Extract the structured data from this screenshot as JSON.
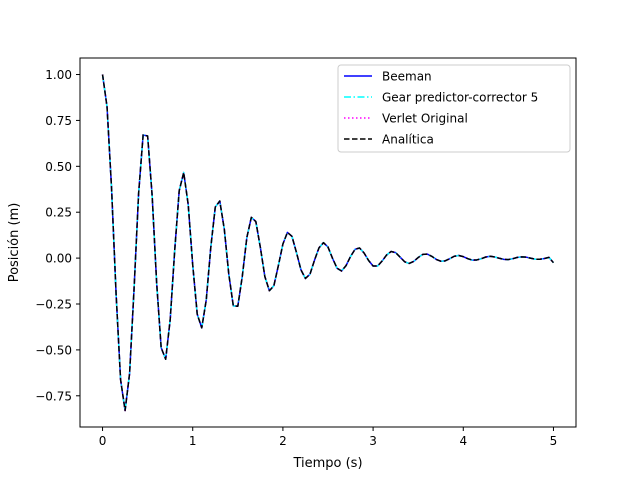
{
  "chart_data": {
    "type": "line",
    "title": "",
    "xlabel": "Tiempo (s)",
    "ylabel": "Posición (m)",
    "xlim": [
      -0.25,
      5.25
    ],
    "ylim": [
      -0.92,
      1.09
    ],
    "xticks": [
      0,
      1,
      2,
      3,
      4,
      5
    ],
    "xtick_labels": [
      "0",
      "1",
      "2",
      "3",
      "4",
      "5"
    ],
    "yticks": [
      -0.75,
      -0.5,
      -0.25,
      0.0,
      0.25,
      0.5,
      0.75,
      1.0
    ],
    "ytick_labels": [
      "−0.75",
      "−0.50",
      "−0.25",
      "0.00",
      "0.25",
      "0.50",
      "0.75",
      "1.00"
    ],
    "grid": false,
    "legend_position": "upper right",
    "x": [
      0,
      0.05,
      0.1,
      0.15,
      0.2,
      0.25,
      0.3,
      0.35,
      0.4,
      0.45,
      0.5,
      0.55,
      0.6,
      0.65,
      0.7,
      0.75,
      0.8,
      0.85,
      0.9,
      0.95,
      1,
      1.05,
      1.1,
      1.15,
      1.2,
      1.25,
      1.3,
      1.35,
      1.4,
      1.45,
      1.5,
      1.55,
      1.6,
      1.65,
      1.7,
      1.75,
      1.8,
      1.85,
      1.9,
      1.95,
      2,
      2.05,
      2.1,
      2.15,
      2.2,
      2.25,
      2.3,
      2.35,
      2.4,
      2.45,
      2.5,
      2.55,
      2.6,
      2.65,
      2.7,
      2.75,
      2.8,
      2.85,
      2.9,
      2.95,
      3,
      3.05,
      3.1,
      3.15,
      3.2,
      3.25,
      3.3,
      3.35,
      3.4,
      3.45,
      3.5,
      3.55,
      3.6,
      3.65,
      3.7,
      3.75,
      3.8,
      3.85,
      3.9,
      3.95,
      4,
      4.05,
      4.1,
      4.15,
      4.2,
      4.25,
      4.3,
      4.35,
      4.4,
      4.45,
      4.5,
      4.55,
      4.6,
      4.65,
      4.7,
      4.75,
      4.8,
      4.85,
      4.9,
      4.95,
      5
    ],
    "series": [
      {
        "name": "Beeman",
        "color": "#0000ff",
        "line_style": "solid",
        "values": [
          1.0,
          0.823,
          0.38,
          -0.193,
          -0.662,
          -0.83,
          -0.628,
          -0.162,
          0.353,
          0.671,
          0.665,
          0.34,
          -0.135,
          -0.488,
          -0.551,
          -0.336,
          0.041,
          0.367,
          0.466,
          0.291,
          -0.038,
          -0.306,
          -0.38,
          -0.228,
          0.057,
          0.278,
          0.311,
          0.158,
          -0.088,
          -0.26,
          -0.262,
          -0.098,
          0.112,
          0.222,
          0.199,
          0.058,
          -0.101,
          -0.178,
          -0.15,
          -0.04,
          0.077,
          0.14,
          0.119,
          0.031,
          -0.064,
          -0.111,
          -0.088,
          -0.012,
          0.056,
          0.084,
          0.06,
          -0.001,
          -0.055,
          -0.07,
          -0.041,
          0.009,
          0.048,
          0.055,
          0.028,
          -0.013,
          -0.043,
          -0.043,
          -0.016,
          0.017,
          0.036,
          0.03,
          0.005,
          -0.02,
          -0.029,
          -0.018,
          0.003,
          0.02,
          0.022,
          0.01,
          -0.007,
          -0.017,
          -0.015,
          -0.003,
          0.01,
          0.014,
          0.008,
          -0.003,
          -0.011,
          -0.01,
          -0.003,
          0.006,
          0.01,
          0.006,
          -0.001,
          -0.007,
          -0.008,
          -0.003,
          0.004,
          0.007,
          0.005,
          -0.001,
          -0.006,
          -0.006,
          -0.002,
          0.004,
          -0.025
        ]
      },
      {
        "name": "Gear predictor-corrector 5",
        "color": "#00ffff",
        "line_style": "dashdot",
        "values": [
          1.0,
          0.823,
          0.38,
          -0.193,
          -0.662,
          -0.83,
          -0.628,
          -0.162,
          0.353,
          0.671,
          0.665,
          0.34,
          -0.135,
          -0.488,
          -0.551,
          -0.336,
          0.041,
          0.367,
          0.466,
          0.291,
          -0.038,
          -0.306,
          -0.38,
          -0.228,
          0.057,
          0.278,
          0.311,
          0.158,
          -0.088,
          -0.26,
          -0.262,
          -0.098,
          0.112,
          0.222,
          0.199,
          0.058,
          -0.101,
          -0.178,
          -0.15,
          -0.04,
          0.077,
          0.14,
          0.119,
          0.031,
          -0.064,
          -0.111,
          -0.088,
          -0.012,
          0.056,
          0.084,
          0.06,
          -0.001,
          -0.055,
          -0.07,
          -0.041,
          0.009,
          0.048,
          0.055,
          0.028,
          -0.013,
          -0.043,
          -0.043,
          -0.016,
          0.017,
          0.036,
          0.03,
          0.005,
          -0.02,
          -0.029,
          -0.018,
          0.003,
          0.02,
          0.022,
          0.01,
          -0.007,
          -0.017,
          -0.015,
          -0.003,
          0.01,
          0.014,
          0.008,
          -0.003,
          -0.011,
          -0.01,
          -0.003,
          0.006,
          0.01,
          0.006,
          -0.001,
          -0.007,
          -0.008,
          -0.003,
          0.004,
          0.007,
          0.005,
          -0.001,
          -0.006,
          -0.006,
          -0.002,
          0.004,
          -0.025
        ]
      },
      {
        "name": "Verlet Original",
        "color": "#ff00ff",
        "line_style": "dotted",
        "values": [
          1.0,
          0.823,
          0.38,
          -0.193,
          -0.662,
          -0.83,
          -0.628,
          -0.162,
          0.353,
          0.671,
          0.665,
          0.34,
          -0.135,
          -0.488,
          -0.551,
          -0.336,
          0.041,
          0.367,
          0.466,
          0.291,
          -0.038,
          -0.306,
          -0.38,
          -0.228,
          0.057,
          0.278,
          0.311,
          0.158,
          -0.088,
          -0.26,
          -0.262,
          -0.098,
          0.112,
          0.222,
          0.199,
          0.058,
          -0.101,
          -0.178,
          -0.15,
          -0.04,
          0.077,
          0.14,
          0.119,
          0.031,
          -0.064,
          -0.111,
          -0.088,
          -0.012,
          0.056,
          0.084,
          0.06,
          -0.001,
          -0.055,
          -0.07,
          -0.041,
          0.009,
          0.048,
          0.055,
          0.028,
          -0.013,
          -0.043,
          -0.043,
          -0.016,
          0.017,
          0.036,
          0.03,
          0.005,
          -0.02,
          -0.029,
          -0.018,
          0.003,
          0.02,
          0.022,
          0.01,
          -0.007,
          -0.017,
          -0.015,
          -0.003,
          0.01,
          0.014,
          0.008,
          -0.003,
          -0.011,
          -0.01,
          -0.003,
          0.006,
          0.01,
          0.006,
          -0.001,
          -0.007,
          -0.008,
          -0.003,
          0.004,
          0.007,
          0.005,
          -0.001,
          -0.006,
          -0.006,
          -0.002,
          0.004,
          -0.025
        ]
      },
      {
        "name": "Analítica",
        "color": "#000000",
        "line_style": "dashed",
        "values": [
          1.0,
          0.823,
          0.38,
          -0.193,
          -0.662,
          -0.83,
          -0.628,
          -0.162,
          0.353,
          0.671,
          0.665,
          0.34,
          -0.135,
          -0.488,
          -0.551,
          -0.336,
          0.041,
          0.367,
          0.466,
          0.291,
          -0.038,
          -0.306,
          -0.38,
          -0.228,
          0.057,
          0.278,
          0.311,
          0.158,
          -0.088,
          -0.26,
          -0.262,
          -0.098,
          0.112,
          0.222,
          0.199,
          0.058,
          -0.101,
          -0.178,
          -0.15,
          -0.04,
          0.077,
          0.14,
          0.119,
          0.031,
          -0.064,
          -0.111,
          -0.088,
          -0.012,
          0.056,
          0.084,
          0.06,
          -0.001,
          -0.055,
          -0.07,
          -0.041,
          0.009,
          0.048,
          0.055,
          0.028,
          -0.013,
          -0.043,
          -0.043,
          -0.016,
          0.017,
          0.036,
          0.03,
          0.005,
          -0.02,
          -0.029,
          -0.018,
          0.003,
          0.02,
          0.022,
          0.01,
          -0.007,
          -0.017,
          -0.015,
          -0.003,
          0.01,
          0.014,
          0.008,
          -0.003,
          -0.011,
          -0.01,
          -0.003,
          0.006,
          0.01,
          0.006,
          -0.001,
          -0.007,
          -0.008,
          -0.003,
          0.004,
          0.007,
          0.005,
          -0.001,
          -0.006,
          -0.006,
          -0.002,
          0.004,
          -0.025
        ]
      }
    ]
  }
}
